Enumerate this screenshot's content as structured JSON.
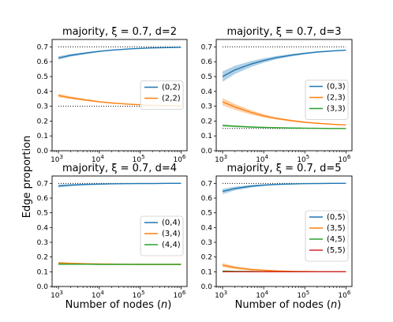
{
  "figure": {
    "ylabel": "Edge proportion",
    "xlabel": "Number of nodes (n)"
  },
  "chart_data": [
    {
      "type": "line",
      "title": "majority, ξ = 0.7, d=2",
      "xlabel": "Number of nodes (n)",
      "ylabel": "Edge proportion",
      "xscale": "log",
      "xlim": [
        700,
        1400000
      ],
      "ylim": [
        0.0,
        0.75
      ],
      "yticks": [
        0.0,
        0.1,
        0.2,
        0.3,
        0.4,
        0.5,
        0.6,
        0.7
      ],
      "xticks": [
        "10^3",
        "10^4",
        "10^5",
        "10^6"
      ],
      "x": [
        1000,
        2000,
        5000,
        10000,
        20000,
        50000,
        100000,
        200000,
        500000,
        1000000
      ],
      "series": [
        {
          "name": "(0,2)",
          "color": "#1f77b4",
          "values": [
            0.625,
            0.643,
            0.659,
            0.67,
            0.678,
            0.686,
            0.69,
            0.693,
            0.695,
            0.697
          ],
          "band": [
            0.012,
            0.009,
            0.007,
            0.005,
            0.004,
            0.003,
            0.002,
            0.002,
            0.002,
            0.002
          ]
        },
        {
          "name": "(2,2)",
          "color": "#ff7f0e",
          "values": [
            0.372,
            0.357,
            0.341,
            0.33,
            0.322,
            0.314,
            0.31,
            0.307,
            0.305,
            0.303
          ],
          "band": [
            0.012,
            0.009,
            0.007,
            0.005,
            0.004,
            0.003,
            0.002,
            0.002,
            0.002,
            0.002
          ]
        }
      ],
      "reference_lines": [
        0.7,
        0.3
      ],
      "legend": "right"
    },
    {
      "type": "line",
      "title": "majority, ξ = 0.7, d=3",
      "xscale": "log",
      "xlim": [
        700,
        1400000
      ],
      "ylim": [
        0.0,
        0.75
      ],
      "yticks": [
        0.0,
        0.1,
        0.2,
        0.3,
        0.4,
        0.5,
        0.6,
        0.7
      ],
      "xticks": [
        "10^3",
        "10^4",
        "10^5",
        "10^6"
      ],
      "x": [
        1000,
        2000,
        5000,
        10000,
        20000,
        50000,
        100000,
        200000,
        500000,
        1000000
      ],
      "series": [
        {
          "name": "(0,3)",
          "color": "#1f77b4",
          "values": [
            0.5,
            0.545,
            0.585,
            0.608,
            0.627,
            0.645,
            0.656,
            0.665,
            0.673,
            0.678
          ],
          "band": [
            0.035,
            0.028,
            0.02,
            0.015,
            0.011,
            0.008,
            0.006,
            0.005,
            0.004,
            0.003
          ]
        },
        {
          "name": "(2,3)",
          "color": "#ff7f0e",
          "values": [
            0.33,
            0.295,
            0.258,
            0.235,
            0.218,
            0.202,
            0.192,
            0.185,
            0.178,
            0.174
          ],
          "band": [
            0.025,
            0.02,
            0.015,
            0.011,
            0.008,
            0.006,
            0.005,
            0.004,
            0.003,
            0.003
          ]
        },
        {
          "name": "(3,3)",
          "color": "#2ca02c",
          "values": [
            0.17,
            0.165,
            0.16,
            0.157,
            0.155,
            0.153,
            0.152,
            0.151,
            0.15,
            0.15
          ],
          "band": [
            0.008,
            0.006,
            0.005,
            0.004,
            0.003,
            0.003,
            0.002,
            0.002,
            0.002,
            0.002
          ]
        }
      ],
      "reference_lines": [
        0.7,
        0.15
      ],
      "legend": "right"
    },
    {
      "type": "line",
      "title": "majority, ξ = 0.7, d=4",
      "xscale": "log",
      "xlim": [
        700,
        1400000
      ],
      "ylim": [
        0.0,
        0.75
      ],
      "yticks": [
        0.0,
        0.1,
        0.2,
        0.3,
        0.4,
        0.5,
        0.6,
        0.7
      ],
      "xticks": [
        "10^3",
        "10^4",
        "10^5",
        "10^6"
      ],
      "x": [
        1000,
        2000,
        5000,
        10000,
        20000,
        50000,
        100000,
        200000,
        500000,
        1000000
      ],
      "series": [
        {
          "name": "(0,4)",
          "color": "#1f77b4",
          "values": [
            0.682,
            0.688,
            0.693,
            0.695,
            0.697,
            0.698,
            0.699,
            0.699,
            0.7,
            0.7
          ],
          "band": [
            0.01,
            0.007,
            0.005,
            0.004,
            0.003,
            0.002,
            0.002,
            0.002,
            0.001,
            0.001
          ]
        },
        {
          "name": "(3,4)",
          "color": "#ff7f0e",
          "values": [
            0.16,
            0.157,
            0.154,
            0.153,
            0.152,
            0.151,
            0.15,
            0.15,
            0.15,
            0.15
          ],
          "band": [
            0.006,
            0.005,
            0.004,
            0.003,
            0.003,
            0.002,
            0.002,
            0.002,
            0.001,
            0.001
          ]
        },
        {
          "name": "(4,4)",
          "color": "#2ca02c",
          "values": [
            0.152,
            0.151,
            0.151,
            0.15,
            0.15,
            0.15,
            0.15,
            0.15,
            0.15,
            0.15
          ],
          "band": [
            0.004,
            0.003,
            0.003,
            0.002,
            0.002,
            0.002,
            0.001,
            0.001,
            0.001,
            0.001
          ]
        }
      ],
      "reference_lines": [
        0.7,
        0.15
      ],
      "legend": "right"
    },
    {
      "type": "line",
      "title": "majority, ξ = 0.7, d=5",
      "xscale": "log",
      "xlim": [
        700,
        1400000
      ],
      "ylim": [
        0.0,
        0.75
      ],
      "yticks": [
        0.0,
        0.1,
        0.2,
        0.3,
        0.4,
        0.5,
        0.6,
        0.7
      ],
      "xticks": [
        "10^3",
        "10^4",
        "10^5",
        "10^6"
      ],
      "x": [
        1000,
        2000,
        5000,
        10000,
        20000,
        50000,
        100000,
        200000,
        500000,
        1000000
      ],
      "series": [
        {
          "name": "(0,5)",
          "color": "#1f77b4",
          "values": [
            0.645,
            0.665,
            0.681,
            0.688,
            0.693,
            0.696,
            0.698,
            0.699,
            0.7,
            0.7
          ],
          "band": [
            0.018,
            0.013,
            0.009,
            0.006,
            0.004,
            0.003,
            0.002,
            0.002,
            0.001,
            0.001
          ]
        },
        {
          "name": "(3,5)",
          "color": "#ff7f0e",
          "values": [
            0.145,
            0.128,
            0.115,
            0.11,
            0.106,
            0.103,
            0.102,
            0.101,
            0.1,
            0.1
          ],
          "band": [
            0.014,
            0.01,
            0.007,
            0.005,
            0.004,
            0.003,
            0.002,
            0.002,
            0.001,
            0.001
          ]
        },
        {
          "name": "(4,5)",
          "color": "#2ca02c",
          "values": [
            0.105,
            0.103,
            0.102,
            0.101,
            0.101,
            0.1,
            0.1,
            0.1,
            0.1,
            0.1
          ],
          "band": [
            0.004,
            0.003,
            0.003,
            0.002,
            0.002,
            0.001,
            0.001,
            0.001,
            0.001,
            0.001
          ]
        },
        {
          "name": "(5,5)",
          "color": "#d62728",
          "values": [
            0.1,
            0.1,
            0.1,
            0.1,
            0.1,
            0.1,
            0.1,
            0.1,
            0.1,
            0.1
          ],
          "band": [
            0.002,
            0.002,
            0.002,
            0.001,
            0.001,
            0.001,
            0.001,
            0.001,
            0.001,
            0.001
          ]
        }
      ],
      "reference_lines": [
        0.7,
        0.1
      ],
      "legend": "right"
    }
  ]
}
